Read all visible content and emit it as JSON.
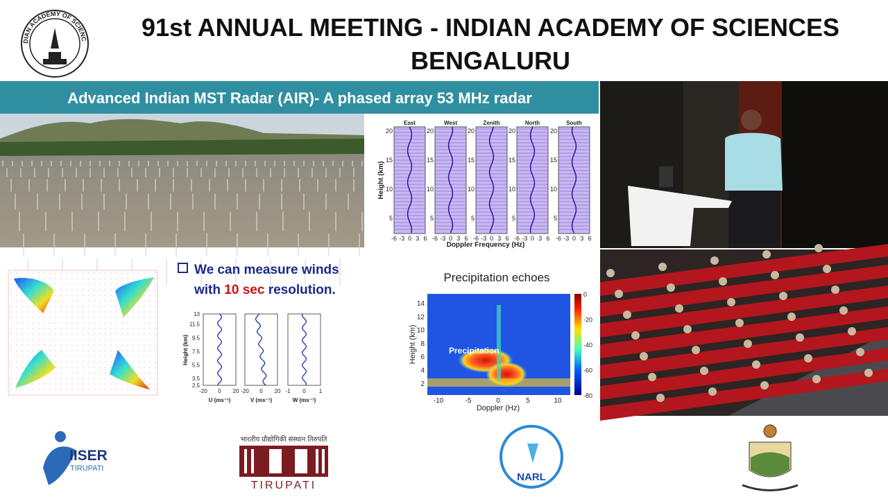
{
  "header": {
    "title": "91st ANNUAL MEETING - INDIAN ACADEMY OF SCIENCES",
    "subtitle": "BENGALURU",
    "logo_text": "INDIAN ACADEMY OF SCIENCES"
  },
  "slide": {
    "title": "Advanced Indian MST Radar (AIR)- A phased array 53 MHz radar",
    "bullet": {
      "line1": "We can measure winds",
      "line2_start": "with",
      "highlight": "10 sec",
      "line2_end": "resolution."
    },
    "profiles": {
      "panels": [
        "East",
        "West",
        "Zenith",
        "North",
        "South"
      ],
      "y_label": "Height (km)",
      "x_label": "Doppler Frequency (Hz)",
      "yticks": [
        "20",
        "15",
        "10",
        "5"
      ],
      "xticks": [
        "-6",
        "-3",
        "0",
        "3",
        "6"
      ]
    },
    "winds": {
      "y_label": "Height (km)",
      "yticks": [
        "13",
        "11.5",
        "9.5",
        "7.5",
        "5.5",
        "3.5",
        "2.5"
      ],
      "panels": [
        {
          "x_label": "U (ms⁻¹)",
          "xticks": [
            "-20",
            "0",
            "20"
          ]
        },
        {
          "x_label": "V (ms⁻¹)",
          "xticks": [
            "-20",
            "0",
            "20"
          ]
        },
        {
          "x_label": "W (ms⁻¹)",
          "xticks": [
            "-1",
            "0",
            "1"
          ]
        }
      ]
    },
    "precipitation": {
      "title": "Precipitation echoes",
      "annotation": "Precipitation",
      "y_label": "Height (km)",
      "yticks": [
        "14",
        "12",
        "10",
        "8",
        "6",
        "4",
        "2"
      ],
      "x_label": "Doppler (Hz)",
      "xticks": [
        "-10",
        "-5",
        "0",
        "5",
        "10"
      ],
      "colorbar_ticks": [
        "0",
        "-20",
        "-40",
        "-60",
        "-80"
      ]
    }
  },
  "footer": {
    "iiser": "IISER",
    "iiser_city": "TIRUPATI",
    "iit_hindi": "भारतीय प्रौद्योगिकी संस्थान तिरुपति",
    "iit_city": "TIRUPATI",
    "narl": "NARL"
  }
}
